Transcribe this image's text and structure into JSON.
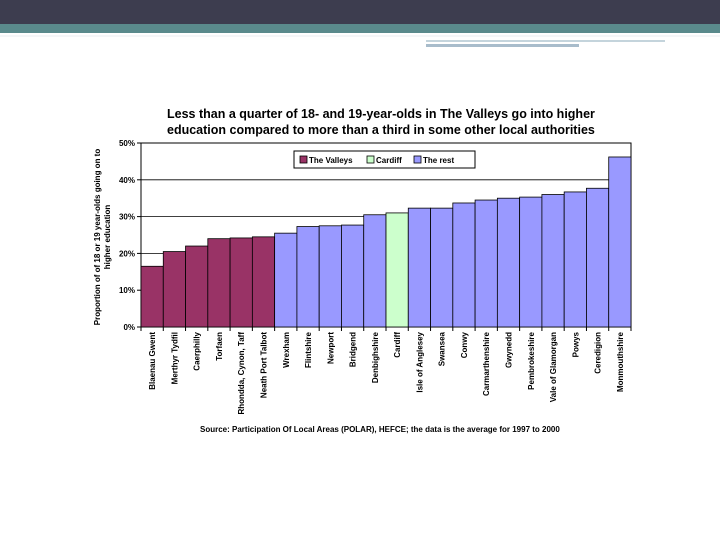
{
  "chart_data": {
    "type": "bar",
    "title_lines": [
      "Less than a quarter of 18- and 19-year-olds in The Valleys go into higher",
      "education compared to more than a third in some other local authorities"
    ],
    "ylabel_lines": [
      "Proportion of of 18 or 19 year-olds going on to",
      "higher education"
    ],
    "xlabel": "",
    "ylim": [
      0,
      50
    ],
    "yticks": [
      0,
      10,
      20,
      30,
      40,
      50
    ],
    "ytick_labels": [
      "0%",
      "10%",
      "20%",
      "30%",
      "40%",
      "50%"
    ],
    "grid": "horizontal",
    "legend_position": "top-left",
    "legend": [
      {
        "name": "The Valleys",
        "color": "#993366"
      },
      {
        "name": "Cardiff",
        "color": "#ccffcc"
      },
      {
        "name": "The rest",
        "color": "#9999ff"
      }
    ],
    "categories": [
      "Blaenau Gwent",
      "Merthyr Tydfil",
      "Caerphilly",
      "Torfaen",
      "Rhondda, Cynon, Taff",
      "Neath Port Talbot",
      "Wrexham",
      "Flintshire",
      "Newport",
      "Bridgend",
      "Denbighshire",
      "Cardiff",
      "Isle of Anglesey",
      "Swansea",
      "Conwy",
      "Carmarthenshire",
      "Gwynedd",
      "Pembrokeshire",
      "Vale of Glamorgan",
      "Powys",
      "Ceredigion",
      "Monmouthshire"
    ],
    "values": [
      16.5,
      20.5,
      22,
      24,
      24.2,
      24.5,
      25.5,
      27.3,
      27.5,
      27.7,
      30.5,
      31,
      32.3,
      32.3,
      33.7,
      34.5,
      35,
      35.3,
      36,
      36.7,
      37.7,
      46.2
    ],
    "groups": [
      "The Valleys",
      "The Valleys",
      "The Valleys",
      "The Valleys",
      "The Valleys",
      "The Valleys",
      "The rest",
      "The rest",
      "The rest",
      "The rest",
      "The rest",
      "Cardiff",
      "The rest",
      "The rest",
      "The rest",
      "The rest",
      "The rest",
      "The rest",
      "The rest",
      "The rest",
      "The rest",
      "The rest"
    ],
    "source": "Source: Participation Of Local Areas (POLAR), HEFCE; the data is the average for 1997 to 2000"
  }
}
